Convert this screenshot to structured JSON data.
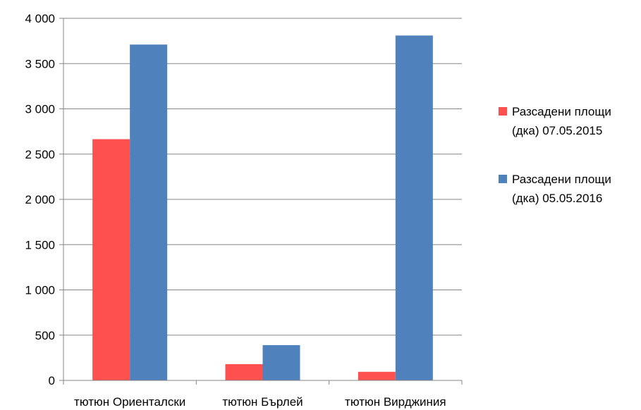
{
  "chart_data": {
    "type": "bar",
    "categories": [
      "тютюн Ориенталски",
      "тютюн Бърлей",
      "тютюн Вирджиния"
    ],
    "series": [
      {
        "name": "Разсадени площи (дка) 07.05.2015",
        "legend_lines": [
          "Разсадени площи",
          "(дка) 07.05.2015"
        ],
        "color": "#ff5050",
        "values": [
          2665,
          180,
          95
        ]
      },
      {
        "name": "Разсадени площи (дка) 05.05.2016",
        "legend_lines": [
          "Разсадени площи",
          "(дка) 05.05.2016"
        ],
        "color": "#4f81bd",
        "values": [
          3710,
          390,
          3810
        ]
      }
    ],
    "yticks": [
      "0",
      "500",
      "1 000",
      "1 500",
      "2 000",
      "2 500",
      "3 000",
      "3 500",
      "4 000"
    ],
    "ylim": [
      0,
      4000
    ],
    "grid": true,
    "legend_position": "right",
    "title": "",
    "xlabel": "",
    "ylabel": ""
  }
}
